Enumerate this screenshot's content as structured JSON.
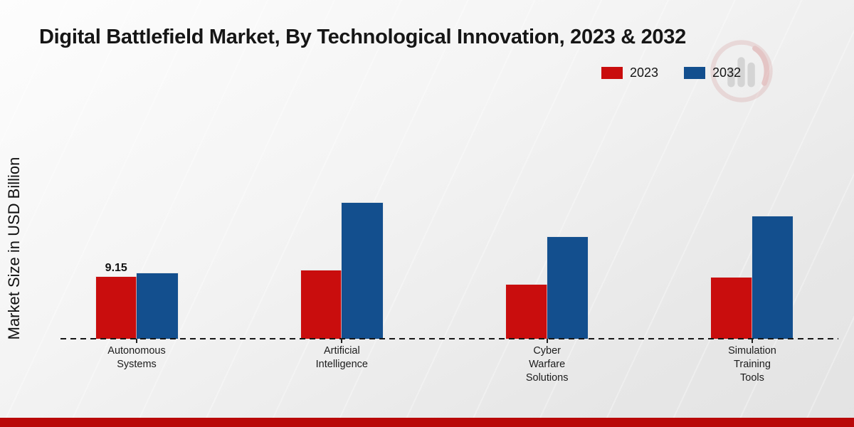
{
  "chart_data": {
    "type": "bar",
    "title": "Digital Battlefield Market, By Technological Innovation, 2023 & 2032",
    "ylabel": "Market Size in USD Billion",
    "xlabel": "",
    "categories": [
      "Autonomous Systems",
      "Artificial Intelligence",
      "Cyber Warfare Solutions",
      "Simulation Training Tools"
    ],
    "category_lines": [
      [
        "Autonomous",
        "Systems"
      ],
      [
        "Artificial",
        "Intelligence"
      ],
      [
        "Cyber",
        "Warfare",
        "Solutions"
      ],
      [
        "Simulation",
        "Training",
        "Tools"
      ]
    ],
    "series": [
      {
        "name": "2023",
        "color": "#c90d0d",
        "values": [
          9.15,
          10.1,
          8.05,
          9.05
        ]
      },
      {
        "name": "2032",
        "color": "#134f8e",
        "values": [
          9.7,
          20.1,
          15.1,
          18.1
        ]
      }
    ],
    "data_labels": [
      {
        "series": "2023",
        "category": "Autonomous Systems",
        "value": "9.15"
      }
    ],
    "ylim": [
      0,
      21
    ],
    "grid": false,
    "baseline_style": "dashed",
    "legend_position": "top-right"
  },
  "footer": {
    "color": "#b90808"
  },
  "watermark": {
    "name": "brand-logo-watermark"
  }
}
